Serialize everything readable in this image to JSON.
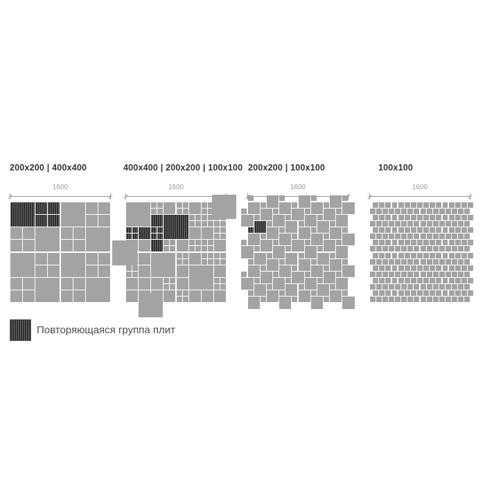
{
  "colors": {
    "background": "#ffffff",
    "tile_gray": "#a3a3a3",
    "tile_dark": "#2f2f2f",
    "dim_gray": "#969696",
    "heading_text": "#333333",
    "legend_text": "#4a4a4a"
  },
  "legend": {
    "label": "Повторяющаяся группа плит"
  },
  "panels": [
    {
      "label": "200x200 | 400x400",
      "dim_label": "1600",
      "pattern": {
        "type": "checkerboard",
        "dark_cells": [
          [
            0,
            0
          ],
          [
            1,
            0
          ]
        ]
      }
    },
    {
      "label": "400x400 | 200x200 | 100x100",
      "dim_label": "1600",
      "pattern": {
        "type": "explicit",
        "tiles": [
          [
            0,
            0,
            4,
            0
          ],
          [
            4,
            0,
            "c",
            0
          ],
          [
            6,
            0,
            2,
            0
          ],
          [
            8,
            0,
            "c",
            0
          ],
          [
            10,
            0,
            2,
            0
          ],
          [
            12,
            0,
            "c",
            0
          ],
          [
            14,
            0,
            2,
            0
          ],
          [
            4,
            2,
            2,
            1
          ],
          [
            6,
            2,
            4,
            1
          ],
          [
            10,
            2,
            "c",
            0
          ],
          [
            12,
            2,
            "c",
            0
          ],
          [
            14,
            2,
            "c",
            0
          ],
          [
            0,
            4,
            "c",
            1
          ],
          [
            2,
            4,
            2,
            1
          ],
          [
            4,
            4,
            "c",
            1
          ],
          [
            10,
            4,
            2,
            0
          ],
          [
            12,
            4,
            2,
            0
          ],
          [
            14,
            4,
            "c",
            0
          ],
          [
            0,
            6,
            2,
            0
          ],
          [
            2,
            6,
            2,
            0
          ],
          [
            4,
            6,
            2,
            1
          ],
          [
            6,
            6,
            "c",
            0
          ],
          [
            8,
            6,
            2,
            0
          ],
          [
            10,
            6,
            "c",
            0
          ],
          [
            12,
            6,
            "c",
            0
          ],
          [
            14,
            6,
            2,
            0
          ],
          [
            0,
            8,
            2,
            0
          ],
          [
            2,
            8,
            2,
            0
          ],
          [
            4,
            8,
            4,
            0
          ],
          [
            8,
            8,
            "c",
            0
          ],
          [
            10,
            8,
            2,
            0
          ],
          [
            12,
            8,
            "c",
            0
          ],
          [
            14,
            8,
            "c",
            0
          ],
          [
            0,
            10,
            "c",
            0
          ],
          [
            2,
            10,
            2,
            0
          ],
          [
            8,
            10,
            2,
            0
          ],
          [
            10,
            10,
            4,
            0
          ],
          [
            14,
            10,
            2,
            0
          ],
          [
            0,
            12,
            2,
            0
          ],
          [
            2,
            12,
            2,
            0
          ],
          [
            4,
            12,
            2,
            0
          ],
          [
            6,
            12,
            "c",
            0
          ],
          [
            8,
            12,
            2,
            0
          ],
          [
            14,
            12,
            "c",
            0
          ],
          [
            0,
            14,
            2,
            0
          ],
          [
            2,
            14,
            2,
            0
          ],
          [
            4,
            14,
            2,
            0
          ],
          [
            6,
            14,
            2,
            0
          ],
          [
            8,
            14,
            "c",
            0
          ],
          [
            10,
            14,
            2,
            0
          ],
          [
            12,
            14,
            2,
            0
          ],
          [
            14,
            14,
            2,
            0
          ]
        ],
        "overhangs": [
          [
            13.6,
            -1.2
          ],
          [
            -2.1,
            6.1
          ],
          [
            2,
            14.4
          ]
        ]
      }
    },
    {
      "label": "200x200 | 100x100",
      "dim_label": "1600",
      "pattern": {
        "type": "hopscotch",
        "dark_ij": [
          1,
          1
        ]
      }
    },
    {
      "label": "100x100",
      "dim_label": "1600",
      "pattern": {
        "type": "running_bond"
      }
    }
  ]
}
